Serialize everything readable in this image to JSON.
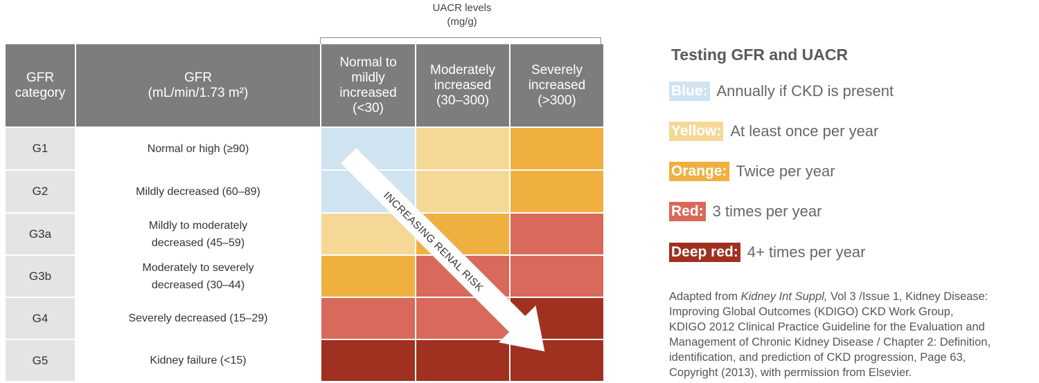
{
  "uacr": {
    "title_line1": "UACR levels",
    "title_line2": "(mg/g)"
  },
  "table": {
    "header": {
      "category_line1": "GFR",
      "category_line2": "category",
      "gfr_line1": "GFR",
      "gfr_line2": "(mL/min/1.73 m²)",
      "col1_line1": "Normal to",
      "col1_line2": "mildly",
      "col1_line3": "increased",
      "col1_line4": "(<30)",
      "col2_line1": "Moderately",
      "col2_line2": "increased",
      "col2_line3": "(30–300)",
      "col3_line1": "Severely",
      "col3_line2": "increased",
      "col3_line3": "(>300)"
    },
    "rows": [
      {
        "category": "G1",
        "desc1": "Normal or high (≥90)",
        "desc2": "",
        "colors": [
          "blue",
          "yellow",
          "orange"
        ]
      },
      {
        "category": "G2",
        "desc1": "Mildly decreased (60–89)",
        "desc2": "",
        "colors": [
          "blue",
          "yellow",
          "orange"
        ]
      },
      {
        "category": "G3a",
        "desc1": "Mildly to moderately",
        "desc2": "decreased (45–59)",
        "colors": [
          "yellow",
          "orange",
          "red"
        ]
      },
      {
        "category": "G3b",
        "desc1": "Moderately to severely",
        "desc2": "decreased (30–44)",
        "colors": [
          "orange",
          "red",
          "red"
        ]
      },
      {
        "category": "G4",
        "desc1": "Severely decreased (15–29)",
        "desc2": "",
        "colors": [
          "red",
          "red",
          "deep red"
        ]
      },
      {
        "category": "G5",
        "desc1": "Kidney failure (<15)",
        "desc2": "",
        "colors": [
          "deep red",
          "deep red",
          "deep red"
        ]
      }
    ],
    "arrow_label": "INCREASING RENAL RISK"
  },
  "legend": {
    "title": "Testing GFR and UACR",
    "items": [
      {
        "tag": "Blue:",
        "text": "Annually if CKD is present"
      },
      {
        "tag": "Yellow:",
        "text": "At least once per year"
      },
      {
        "tag": "Orange:",
        "text": "Twice per year"
      },
      {
        "tag": "Red:",
        "text": "3 times per year"
      },
      {
        "tag": "Deep red:",
        "text": "4+ times per year"
      }
    ]
  },
  "citation": {
    "line1_prefix": "Adapted from ",
    "line1_italic": "Kidney Int Suppl,",
    "line1_suffix": " Vol 3 /Issue 1, Kidney Disease:",
    "line2": "Improving Global Outcomes (KDIGO) CKD Work Group,",
    "line3": "KDIGO 2012 Clinical Practice Guideline for the Evaluation and",
    "line4": "Management of Chronic Kidney Disease / Chapter 2: Definition,",
    "line5": "identification, and prediction of CKD progression, Page 63,",
    "line6": "Copyright (2013), with permission from Elsevier."
  },
  "colors": {
    "blue": "#cfe3f1",
    "yellow": "#f5d896",
    "orange": "#f0b040",
    "red": "#d9695a",
    "deep_red": "#a03020",
    "header_gray": "#7c7d7d",
    "category_gray": "#e3e4e4"
  }
}
